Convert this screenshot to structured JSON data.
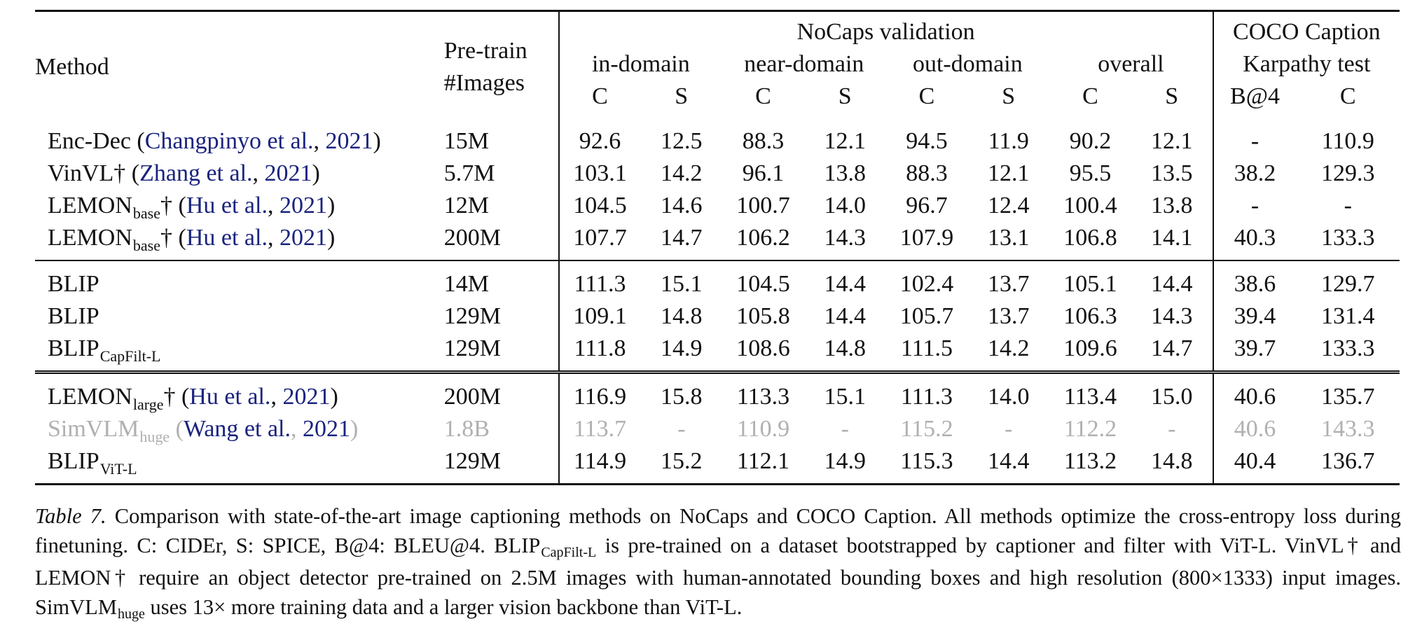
{
  "table": {
    "header": {
      "method": "Method",
      "pretrain_line1": "Pre-train",
      "pretrain_line2": "#Images",
      "nocaps": "NoCaps validation",
      "coco_line1": "COCO Caption",
      "coco_line2": "Karpathy test",
      "groups": [
        "in-domain",
        "near-domain",
        "out-domain",
        "overall"
      ],
      "metrics": [
        "C",
        "S",
        "C",
        "S",
        "C",
        "S",
        "C",
        "S",
        "B@4",
        "C"
      ]
    },
    "rows": [
      {
        "name": "Enc-Dec",
        "sub": "",
        "dagger": "",
        "cite_author": "Changpinyo et al.",
        "cite_year": "2021",
        "images": "15M",
        "values": [
          "92.6",
          "12.5",
          "88.3",
          "12.1",
          "94.5",
          "11.9",
          "90.2",
          "12.1",
          "-",
          "110.9"
        ],
        "bold": [],
        "gray": false
      },
      {
        "name": "VinVL",
        "sub": "",
        "dagger": "†",
        "cite_author": "Zhang et al.",
        "cite_year": "2021",
        "images": "5.7M",
        "values": [
          "103.1",
          "14.2",
          "96.1",
          "13.8",
          "88.3",
          "12.1",
          "95.5",
          "13.5",
          "38.2",
          "129.3"
        ],
        "bold": [],
        "gray": false
      },
      {
        "name": "LEMON",
        "sub": "base",
        "dagger": "†",
        "cite_author": "Hu et al.",
        "cite_year": "2021",
        "images": "12M",
        "values": [
          "104.5",
          "14.6",
          "100.7",
          "14.0",
          "96.7",
          "12.4",
          "100.4",
          "13.8",
          "-",
          "-"
        ],
        "bold": [],
        "gray": false
      },
      {
        "name": "LEMON",
        "sub": "base",
        "dagger": "†",
        "cite_author": "Hu et al.",
        "cite_year": "2021",
        "images": "200M",
        "values": [
          "107.7",
          "14.7",
          "106.2",
          "14.3",
          "107.9",
          "13.1",
          "106.8",
          "14.1",
          "40.3",
          "133.3"
        ],
        "bold": [
          8,
          9
        ],
        "gray": false
      },
      {
        "name": "BLIP",
        "sub": "",
        "dagger": "",
        "cite_author": "",
        "cite_year": "",
        "images": "14M",
        "values": [
          "111.3",
          "15.1",
          "104.5",
          "14.4",
          "102.4",
          "13.7",
          "105.1",
          "14.4",
          "38.6",
          "129.7"
        ],
        "bold": [],
        "gray": false
      },
      {
        "name": "BLIP",
        "sub": "",
        "dagger": "",
        "cite_author": "",
        "cite_year": "",
        "images": "129M",
        "values": [
          "109.1",
          "14.8",
          "105.8",
          "14.4",
          "105.7",
          "13.7",
          "106.3",
          "14.3",
          "39.4",
          "131.4"
        ],
        "bold": [],
        "gray": false
      },
      {
        "name": "BLIP",
        "sub": "CapFilt-L",
        "dagger": "",
        "cite_author": "",
        "cite_year": "",
        "images": "129M",
        "values": [
          "111.8",
          "14.9",
          "108.6",
          "14.8",
          "111.5",
          "14.2",
          "109.6",
          "14.7",
          "39.7",
          "133.3"
        ],
        "bold": [
          0,
          1,
          2,
          3,
          4,
          5,
          6,
          7,
          9
        ],
        "gray": false
      },
      {
        "name": "LEMON",
        "sub": "large",
        "dagger": "†",
        "cite_author": "Hu et al.",
        "cite_year": "2021",
        "images": "200M",
        "values": [
          "116.9",
          "15.8",
          "113.3",
          "15.1",
          "111.3",
          "14.0",
          "113.4",
          "15.0",
          "40.6",
          "135.7"
        ],
        "bold": [],
        "gray": false
      },
      {
        "name": "SimVLM",
        "sub": "huge",
        "dagger": "",
        "cite_author": "Wang et al.",
        "cite_year": "2021",
        "images": "1.8B",
        "values": [
          "113.7",
          "-",
          "110.9",
          "-",
          "115.2",
          "-",
          "112.2",
          "-",
          "40.6",
          "143.3"
        ],
        "bold": [],
        "gray": true
      },
      {
        "name": "BLIP",
        "sub": "ViT-L",
        "dagger": "",
        "cite_author": "",
        "cite_year": "",
        "images": "129M",
        "values": [
          "114.9",
          "15.2",
          "112.1",
          "14.9",
          "115.3",
          "14.4",
          "113.2",
          "14.8",
          "40.4",
          "136.7"
        ],
        "bold": [],
        "gray": false
      }
    ]
  },
  "caption": {
    "label": "Table 7.",
    "p1": " Comparison with state-of-the-art image captioning methods on NoCaps and COCO Caption. All methods optimize the cross-entropy loss during finetuning. C: CIDEr, S: SPICE, B@4: BLEU@4. ",
    "blip": "BLIP",
    "blip_sub": "CapFilt-L",
    "p2": " is pre-trained on a dataset bootstrapped by captioner and filter with ViT-L. VinVL† and LEMON† require an object detector pre-trained on 2.5M images with human-annotated bounding boxes and high resolution (800×1333) input images. ",
    "simvlm": "SimVLM",
    "simvlm_sub": "huge",
    "p3": " uses 13× more training data and a larger vision backbone than ViT-L."
  }
}
